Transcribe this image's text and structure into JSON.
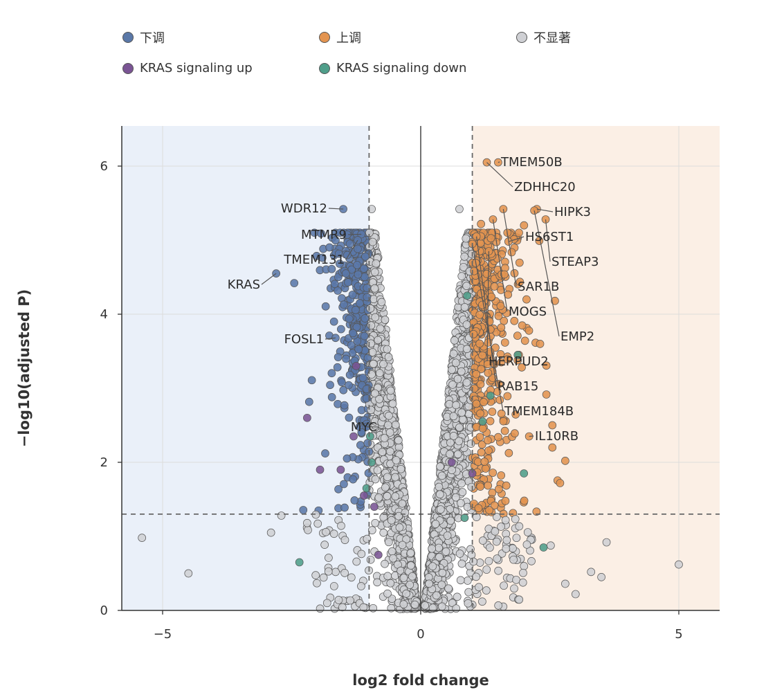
{
  "legend": {
    "items": [
      {
        "label": "下调",
        "color": "#5a78a8"
      },
      {
        "label": "上调",
        "color": "#e39450"
      },
      {
        "label": "不显著",
        "color": "#cfd0d4"
      },
      {
        "label": "KRAS signaling up",
        "color": "#7a5494"
      },
      {
        "label": "KRAS signaling down",
        "color": "#4f9e8a"
      }
    ]
  },
  "colors": {
    "down_region": "#eaf0f9",
    "up_region": "#fbefe5",
    "down": "#5a78a8",
    "up": "#e39450",
    "ns": "#cfd0d4",
    "kras_up": "#7a5494",
    "kras_down": "#4f9e8a",
    "threshold_line": "#666666"
  },
  "chart_data": {
    "type": "scatter",
    "xlabel": "log2 fold change",
    "ylabel": "−log10(adjusted P)",
    "xlim": [
      -5.8,
      5.8
    ],
    "ylim": [
      0,
      6.55
    ],
    "x_ticks": [
      {
        "value": -5,
        "label": "−5"
      },
      {
        "value": 0,
        "label": "0"
      },
      {
        "value": 5,
        "label": "5"
      }
    ],
    "y_ticks": [
      {
        "value": 0,
        "label": "0"
      },
      {
        "value": 2,
        "label": "2"
      },
      {
        "value": 4,
        "label": "4"
      },
      {
        "value": 6,
        "label": "6"
      }
    ],
    "grid": true,
    "thresholds": {
      "log2fc": 1,
      "neglog10p": 1.3
    },
    "labeled_points": [
      {
        "gene": "TMEM50B",
        "x": 1.5,
        "y": 6.05
      },
      {
        "gene": "ZDHHC20",
        "x": 1.28,
        "y": 6.05
      },
      {
        "gene": "HIPK3",
        "x": 2.25,
        "y": 5.42
      },
      {
        "gene": "HS6ST1",
        "x": 1.7,
        "y": 4.98
      },
      {
        "gene": "STEAP3",
        "x": 2.42,
        "y": 5.28
      },
      {
        "gene": "SAR1B",
        "x": 1.6,
        "y": 5.42
      },
      {
        "gene": "MOGS",
        "x": 1.4,
        "y": 5.28
      },
      {
        "gene": "EMP2",
        "x": 2.2,
        "y": 5.4
      },
      {
        "gene": "HERPUD2",
        "x": 1.32,
        "y": 4.85
      },
      {
        "gene": "RAB15",
        "x": 1.08,
        "y": 5.05
      },
      {
        "gene": "TMEM184B",
        "x": 1.0,
        "y": 4.95
      },
      {
        "gene": "IL10RB",
        "x": 2.1,
        "y": 2.35
      },
      {
        "gene": "WDR12",
        "x": -1.5,
        "y": 5.42
      },
      {
        "gene": "MTMR9",
        "x": -1.15,
        "y": 5.08
      },
      {
        "gene": "TMEM131",
        "x": -1.22,
        "y": 5.0
      },
      {
        "gene": "KRAS",
        "x": -2.8,
        "y": 4.55
      },
      {
        "gene": "FOSL1",
        "x": -1.65,
        "y": 3.68
      },
      {
        "gene": "MYC",
        "x": -1.05,
        "y": 2.48
      }
    ],
    "highlight_points": [
      {
        "x": -2.2,
        "y": 2.6,
        "group": "kras_up"
      },
      {
        "x": -1.95,
        "y": 1.9,
        "group": "kras_up"
      },
      {
        "x": -1.55,
        "y": 1.9,
        "group": "kras_up"
      },
      {
        "x": -1.3,
        "y": 2.35,
        "group": "kras_up"
      },
      {
        "x": -1.25,
        "y": 3.3,
        "group": "kras_up"
      },
      {
        "x": -0.9,
        "y": 1.4,
        "group": "kras_up"
      },
      {
        "x": -0.82,
        "y": 0.75,
        "group": "kras_up"
      },
      {
        "x": -1.1,
        "y": 1.55,
        "group": "kras_up"
      },
      {
        "x": 0.6,
        "y": 2.0,
        "group": "kras_up"
      },
      {
        "x": 1.0,
        "y": 1.85,
        "group": "kras_up"
      },
      {
        "x": 1.88,
        "y": 3.45,
        "group": "kras_down"
      },
      {
        "x": 1.35,
        "y": 2.9,
        "group": "kras_down"
      },
      {
        "x": 2.0,
        "y": 1.85,
        "group": "kras_down"
      },
      {
        "x": 2.38,
        "y": 0.85,
        "group": "kras_down"
      },
      {
        "x": 1.2,
        "y": 2.55,
        "group": "kras_down"
      },
      {
        "x": -1.05,
        "y": 1.65,
        "group": "kras_down"
      },
      {
        "x": -0.95,
        "y": 2.0,
        "group": "kras_down"
      },
      {
        "x": -0.98,
        "y": 2.35,
        "group": "kras_down"
      },
      {
        "x": -2.35,
        "y": 0.65,
        "group": "kras_down"
      },
      {
        "x": 0.85,
        "y": 1.25,
        "group": "kras_down"
      },
      {
        "x": 0.9,
        "y": 4.25,
        "group": "kras_down"
      }
    ],
    "outlier_points": [
      {
        "x": -5.4,
        "y": 0.98,
        "group": "ns"
      },
      {
        "x": -4.5,
        "y": 0.5,
        "group": "ns"
      },
      {
        "x": -2.9,
        "y": 1.05,
        "group": "ns"
      },
      {
        "x": -2.7,
        "y": 1.28,
        "group": "ns"
      },
      {
        "x": -2.2,
        "y": 1.18,
        "group": "ns"
      },
      {
        "x": 3.6,
        "y": 0.92,
        "group": "ns"
      },
      {
        "x": 5.0,
        "y": 0.62,
        "group": "ns"
      },
      {
        "x": 3.3,
        "y": 0.52,
        "group": "ns"
      },
      {
        "x": 3.5,
        "y": 0.45,
        "group": "ns"
      },
      {
        "x": 3.0,
        "y": 0.22,
        "group": "ns"
      },
      {
        "x": 2.8,
        "y": 0.36,
        "group": "ns"
      },
      {
        "x": 0.75,
        "y": 5.42,
        "group": "ns"
      },
      {
        "x": -0.95,
        "y": 5.42,
        "group": "ns"
      },
      {
        "x": -1.45,
        "y": 4.55,
        "group": "down"
      },
      {
        "x": -2.45,
        "y": 4.42,
        "group": "down"
      },
      {
        "x": -1.68,
        "y": 3.9,
        "group": "down"
      },
      {
        "x": -1.6,
        "y": 3.42,
        "group": "down"
      },
      {
        "x": -1.72,
        "y": 2.88,
        "group": "down"
      },
      {
        "x": -1.85,
        "y": 2.12,
        "group": "down"
      },
      {
        "x": 2.55,
        "y": 2.5,
        "group": "up"
      },
      {
        "x": 2.8,
        "y": 2.02,
        "group": "up"
      },
      {
        "x": 2.7,
        "y": 1.72,
        "group": "up"
      },
      {
        "x": 2.55,
        "y": 2.2,
        "group": "up"
      },
      {
        "x": 2.6,
        "y": 4.18,
        "group": "up"
      },
      {
        "x": 2.05,
        "y": 4.2,
        "group": "up"
      }
    ]
  }
}
